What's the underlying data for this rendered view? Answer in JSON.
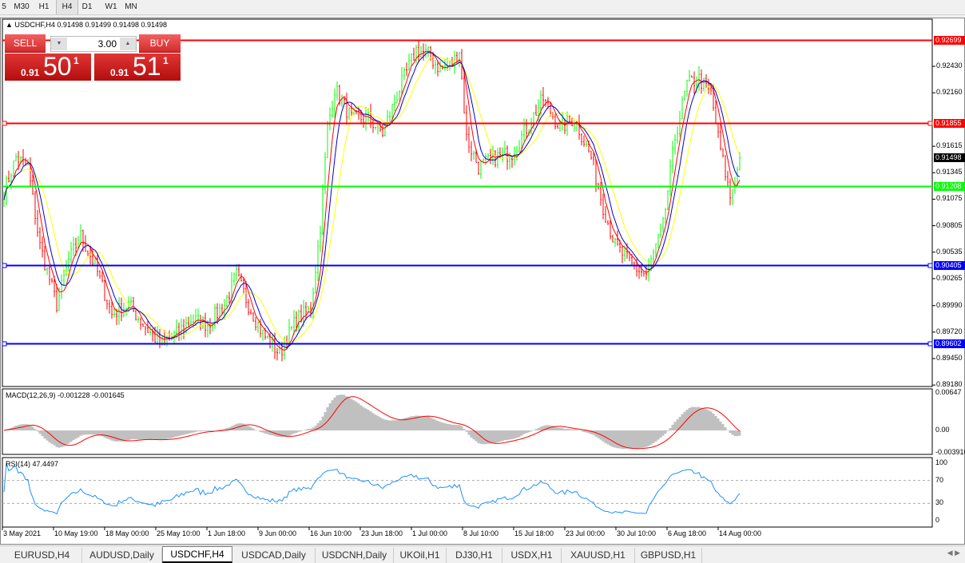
{
  "timeframes": [
    {
      "label": "5"
    },
    {
      "label": "M30"
    },
    {
      "label": "H1"
    },
    {
      "label": "H4",
      "active": true
    },
    {
      "label": "D1"
    },
    {
      "label": "W1"
    },
    {
      "label": "MN"
    }
  ],
  "chart_header": {
    "symbol": "USDCHF,H4 0.91498 0.91499 0.91498 0.91498"
  },
  "trade_panel": {
    "sell_label": "SELL",
    "buy_label": "BUY",
    "lot": "3.00",
    "sell_prefix": "0.91",
    "sell_big": "50",
    "sell_sup": "1",
    "buy_prefix": "0.91",
    "buy_big": "51",
    "buy_sup": "1"
  },
  "colors": {
    "bull": "#00ff00",
    "bear": "#ff0000",
    "ma_fast": "#ff0000",
    "ma_mid": "#0000cc",
    "ma_slow": "#ffff00",
    "macd_hist": "#c0c0c0",
    "macd_signal": "#ff0000",
    "rsi": "#1e90ff"
  },
  "chart_data": {
    "type": "ohlc",
    "price_axis_ticks": [
      "0.92430",
      "0.92160",
      "0.91615",
      "0.91345",
      "0.91075",
      "0.90805",
      "0.90535",
      "0.90265",
      "0.89990",
      "0.89720",
      "0.89450",
      "0.89180"
    ],
    "price_ylim": [
      0.8918,
      0.9286
    ],
    "current_price": "0.91498",
    "horizontal_lines": [
      {
        "price": "0.92699",
        "color": "#ff0000"
      },
      {
        "price": "0.91855",
        "color": "#ff0000"
      },
      {
        "price": "0.91208",
        "color": "#00ff00"
      },
      {
        "price": "0.90405",
        "color": "#0000ff"
      },
      {
        "price": "0.89602",
        "color": "#0000ff"
      }
    ],
    "time_labels": [
      "3 May 2021",
      "10 May 19:00",
      "18 May 00:00",
      "25 May 10:00",
      "1 Jun 18:00",
      "9 Jun 00:00",
      "16 Jun 10:00",
      "23 Jun 18:00",
      "1 Jul 00:00",
      "8 Jul 10:00",
      "15 Jul 18:00",
      "23 Jul 00:00",
      "30 Jul 10:00",
      "6 Aug 18:00",
      "14 Aug 00:00"
    ],
    "close_path_by_bar": [
      [
        0,
        0.9115
      ],
      [
        5,
        0.915
      ],
      [
        10,
        0.914
      ],
      [
        15,
        0.906
      ],
      [
        22,
        0.9
      ],
      [
        27,
        0.9045
      ],
      [
        32,
        0.907
      ],
      [
        38,
        0.904
      ],
      [
        45,
        0.899
      ],
      [
        52,
        0.9
      ],
      [
        58,
        0.898
      ],
      [
        65,
        0.896
      ],
      [
        72,
        0.897
      ],
      [
        78,
        0.8985
      ],
      [
        85,
        0.898
      ],
      [
        92,
        0.9
      ],
      [
        97,
        0.903
      ],
      [
        102,
        0.9
      ],
      [
        108,
        0.897
      ],
      [
        115,
        0.895
      ],
      [
        122,
        0.8985
      ],
      [
        128,
        0.8995
      ],
      [
        132,
        0.908
      ],
      [
        135,
        0.918
      ],
      [
        138,
        0.922
      ],
      [
        145,
        0.919
      ],
      [
        152,
        0.919
      ],
      [
        158,
        0.9175
      ],
      [
        165,
        0.922
      ],
      [
        172,
        0.926
      ],
      [
        177,
        0.9255
      ],
      [
        182,
        0.924
      ],
      [
        187,
        0.9245
      ],
      [
        190,
        0.926
      ],
      [
        193,
        0.917
      ],
      [
        198,
        0.914
      ],
      [
        205,
        0.915
      ],
      [
        212,
        0.9155
      ],
      [
        218,
        0.918
      ],
      [
        225,
        0.921
      ],
      [
        232,
        0.918
      ],
      [
        238,
        0.919
      ],
      [
        245,
        0.915
      ],
      [
        250,
        0.91
      ],
      [
        255,
        0.906
      ],
      [
        262,
        0.904
      ],
      [
        268,
        0.903
      ],
      [
        275,
        0.908
      ],
      [
        280,
        0.917
      ],
      [
        285,
        0.9225
      ],
      [
        290,
        0.923
      ],
      [
        295,
        0.9215
      ],
      [
        298,
        0.917
      ],
      [
        303,
        0.911
      ],
      [
        307,
        0.9145
      ]
    ],
    "macd": {
      "label": "MACD(12,26,9) -0.001228 -0.001645",
      "ticks": [
        "0.00647",
        "0.00",
        "-0.003916"
      ],
      "ylim": [
        -0.0045,
        0.0072
      ]
    },
    "rsi": {
      "label": "RSI(14) 47.4497",
      "ticks": [
        "100",
        "70",
        "30",
        "0"
      ],
      "levels": [
        70,
        30
      ],
      "ylim": [
        0,
        100
      ]
    }
  },
  "tabs": [
    {
      "label": "EURUSD,H4"
    },
    {
      "label": "AUDUSD,Daily"
    },
    {
      "label": "USDCHF,H4",
      "active": true
    },
    {
      "label": "USDCAD,Daily"
    },
    {
      "label": "USDCNH,Daily"
    },
    {
      "label": "UKOil,H1"
    },
    {
      "label": "DJ30,H1"
    },
    {
      "label": "USDX,H1"
    },
    {
      "label": "XAUUSD,H1"
    },
    {
      "label": "GBPUSD,H1"
    }
  ]
}
